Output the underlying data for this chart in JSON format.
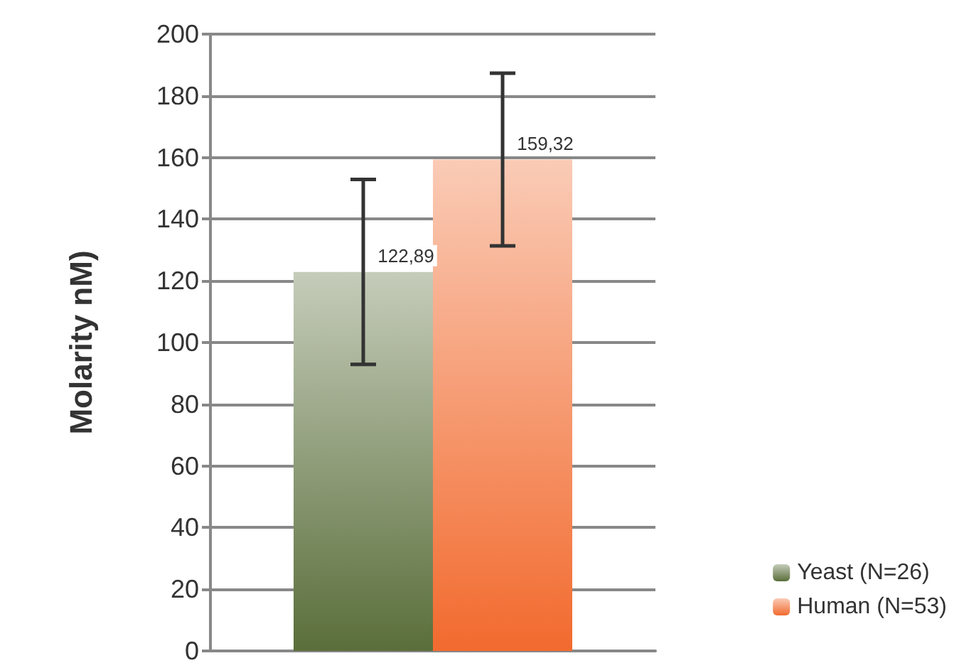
{
  "chart_data": {
    "type": "bar",
    "ylabel": "Molarity nM)",
    "categories": [
      null
    ],
    "series": [
      {
        "name": "Yeast (N=26)",
        "color": "#5a6e3a",
        "values": [
          122.89
        ],
        "errors": [
          30
        ],
        "value_labels": [
          "122,89"
        ]
      },
      {
        "name": "Human (N=53)",
        "color": "#f26a2e",
        "values": [
          159.32
        ],
        "errors": [
          28
        ],
        "value_labels": [
          "159,32"
        ]
      }
    ],
    "ylim": [
      0,
      200
    ],
    "yticks": [
      0,
      20,
      40,
      60,
      80,
      100,
      120,
      140,
      160,
      180,
      200
    ],
    "grid": "y",
    "legend": "right"
  }
}
